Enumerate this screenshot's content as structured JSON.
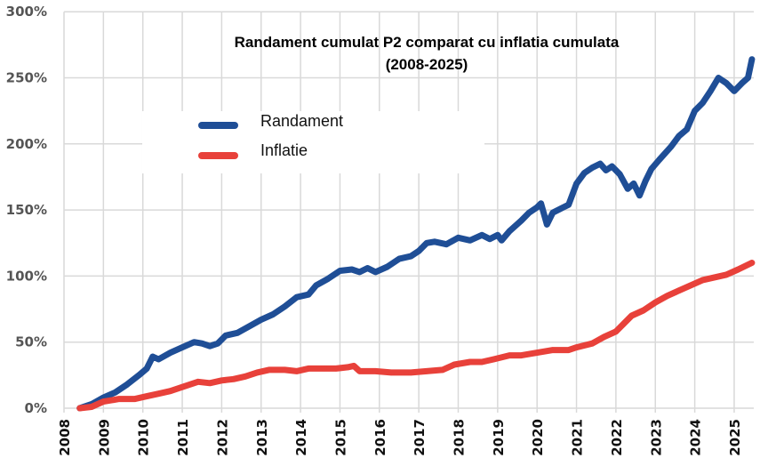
{
  "chart_data": {
    "type": "line",
    "title": "Randament cumulat P2 comparat cu inflatia cumulata",
    "subtitle": "(2008-2025)",
    "xlabel": "",
    "ylabel": "",
    "xlim": [
      2008,
      2025.5
    ],
    "ylim": [
      0,
      300
    ],
    "grid": true,
    "legend_position": "top-left",
    "x_ticks": [
      "2008",
      "2009",
      "2010",
      "2011",
      "2012",
      "2013",
      "2014",
      "2015",
      "2016",
      "2017",
      "2018",
      "2019",
      "2020",
      "2021",
      "2022",
      "2023",
      "2024",
      "2025"
    ],
    "y_ticks": [
      "0%",
      "50%",
      "100%",
      "150%",
      "200%",
      "250%",
      "300%"
    ],
    "y_tick_values": [
      0,
      50,
      100,
      150,
      200,
      250,
      300
    ],
    "series": [
      {
        "name": "Randament",
        "color": "#1f4e96",
        "x": [
          2008.4,
          2008.7,
          2009.0,
          2009.3,
          2009.6,
          2009.9,
          2010.1,
          2010.25,
          2010.4,
          2010.7,
          2011.0,
          2011.3,
          2011.5,
          2011.7,
          2011.9,
          2012.1,
          2012.4,
          2012.7,
          2013.0,
          2013.3,
          2013.6,
          2013.9,
          2014.2,
          2014.4,
          2014.7,
          2015.0,
          2015.3,
          2015.5,
          2015.7,
          2015.9,
          2016.2,
          2016.5,
          2016.8,
          2017.0,
          2017.2,
          2017.4,
          2017.7,
          2018.0,
          2018.3,
          2018.6,
          2018.8,
          2019.0,
          2019.1,
          2019.3,
          2019.6,
          2019.8,
          2020.0,
          2020.1,
          2020.25,
          2020.4,
          2020.6,
          2020.8,
          2021.0,
          2021.2,
          2021.4,
          2021.6,
          2021.75,
          2021.9,
          2022.1,
          2022.3,
          2022.45,
          2022.6,
          2022.75,
          2022.9,
          2023.1,
          2023.4,
          2023.6,
          2023.8,
          2024.0,
          2024.2,
          2024.4,
          2024.6,
          2024.8,
          2025.0,
          2025.2,
          2025.35,
          2025.45
        ],
        "values": [
          0,
          3,
          8,
          12,
          18,
          25,
          30,
          39,
          37,
          42,
          46,
          50,
          49,
          47,
          49,
          55,
          57,
          62,
          67,
          71,
          77,
          84,
          86,
          93,
          98,
          104,
          105,
          103,
          106,
          103,
          107,
          113,
          115,
          119,
          125,
          126,
          124,
          129,
          127,
          131,
          128,
          131,
          127,
          134,
          142,
          148,
          152,
          155,
          139,
          148,
          151,
          154,
          170,
          178,
          182,
          185,
          180,
          183,
          177,
          166,
          170,
          161,
          172,
          181,
          188,
          198,
          206,
          211,
          225,
          231,
          240,
          250,
          246,
          240,
          246,
          250,
          264
        ]
      },
      {
        "name": "Inflatie",
        "color": "#e8413a",
        "x": [
          2008.4,
          2008.7,
          2009.0,
          2009.4,
          2009.8,
          2010.1,
          2010.4,
          2010.7,
          2011.0,
          2011.4,
          2011.7,
          2012.0,
          2012.3,
          2012.6,
          2012.9,
          2013.2,
          2013.6,
          2013.9,
          2014.2,
          2014.6,
          2014.9,
          2015.2,
          2015.35,
          2015.5,
          2015.9,
          2016.3,
          2016.8,
          2017.2,
          2017.6,
          2017.9,
          2018.3,
          2018.6,
          2018.9,
          2019.3,
          2019.6,
          2020.0,
          2020.4,
          2020.8,
          2021.0,
          2021.4,
          2021.7,
          2022.0,
          2022.2,
          2022.4,
          2022.7,
          2023.0,
          2023.3,
          2023.6,
          2023.9,
          2024.2,
          2024.5,
          2024.8,
          2025.1,
          2025.45
        ],
        "values": [
          0,
          1,
          5,
          7,
          7,
          9,
          11,
          13,
          16,
          20,
          19,
          21,
          22,
          24,
          27,
          29,
          29,
          28,
          30,
          30,
          30,
          31,
          32,
          28,
          28,
          27,
          27,
          28,
          29,
          33,
          35,
          35,
          37,
          40,
          40,
          42,
          44,
          44,
          46,
          49,
          54,
          58,
          64,
          70,
          74,
          80,
          85,
          89,
          93,
          97,
          99,
          101,
          105,
          110
        ]
      }
    ]
  }
}
